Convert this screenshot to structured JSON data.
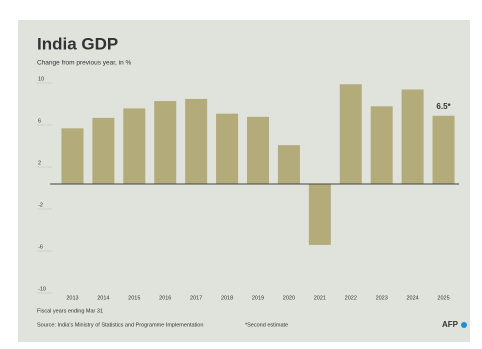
{
  "chart_data": {
    "type": "bar",
    "title": "India GDP",
    "subtitle": "Change from previous year, in %",
    "categories": [
      "2013",
      "2014",
      "2015",
      "2016",
      "2017",
      "2018",
      "2019",
      "2020",
      "2021",
      "2022",
      "2023",
      "2024",
      "2025"
    ],
    "values": [
      5.3,
      6.3,
      7.2,
      7.9,
      8.1,
      6.7,
      6.4,
      3.7,
      -5.8,
      9.5,
      7.4,
      9.0,
      6.5
    ],
    "value_labels": [
      null,
      null,
      null,
      null,
      null,
      null,
      null,
      null,
      null,
      null,
      null,
      null,
      "6.5*"
    ],
    "color": "#b3ab7a",
    "ylim": [
      -10,
      10
    ],
    "yticks": [
      -10,
      -6,
      -2,
      2,
      6,
      10
    ],
    "note": "Fiscal years ending Mar 31",
    "source": "Source: India's Ministry of Statistics and Programme Implementation",
    "footnote": "*Second estimate",
    "credit": "AFP"
  }
}
